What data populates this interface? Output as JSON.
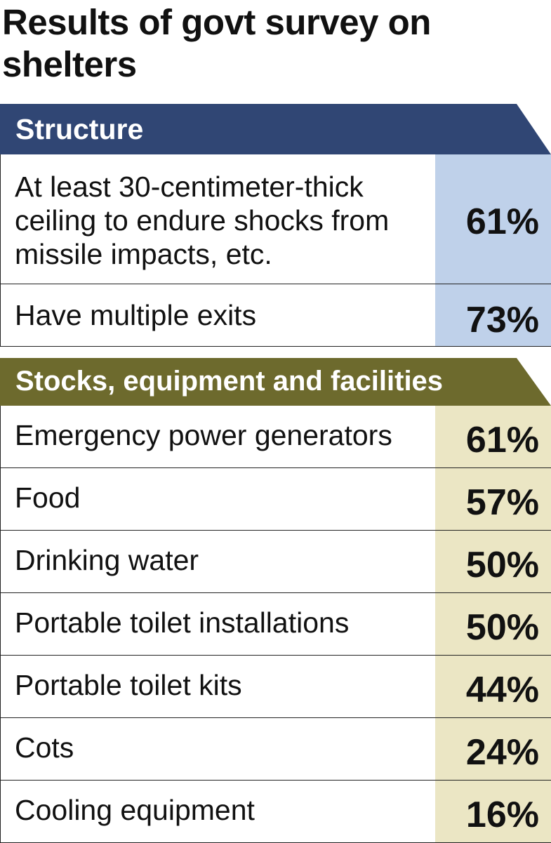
{
  "title": "Results of govt survey on shelters",
  "sections": {
    "structure": {
      "heading": "Structure",
      "rows": [
        {
          "label": "At least 30-centimeter-thick ceiling to endure shocks from missile impacts, etc.",
          "value": "61%"
        },
        {
          "label": "Have multiple exits",
          "value": "73%"
        }
      ]
    },
    "stocks": {
      "heading": "Stocks, equipment and facilities",
      "rows": [
        {
          "label": "Emergency power generators",
          "value": "61%"
        },
        {
          "label": "Food",
          "value": "57%"
        },
        {
          "label": "Drinking water",
          "value": "50%"
        },
        {
          "label": "Portable toilet installations",
          "value": "50%"
        },
        {
          "label": "Portable toilet kits",
          "value": "44%"
        },
        {
          "label": "Cots",
          "value": "24%"
        },
        {
          "label": "Cooling equipment",
          "value": "16%"
        }
      ]
    }
  },
  "colors": {
    "structure_banner": "#304674",
    "structure_value_bg": "#bfd1ea",
    "stocks_banner": "#6d6a2d",
    "stocks_value_bg": "#ebe6c4"
  }
}
